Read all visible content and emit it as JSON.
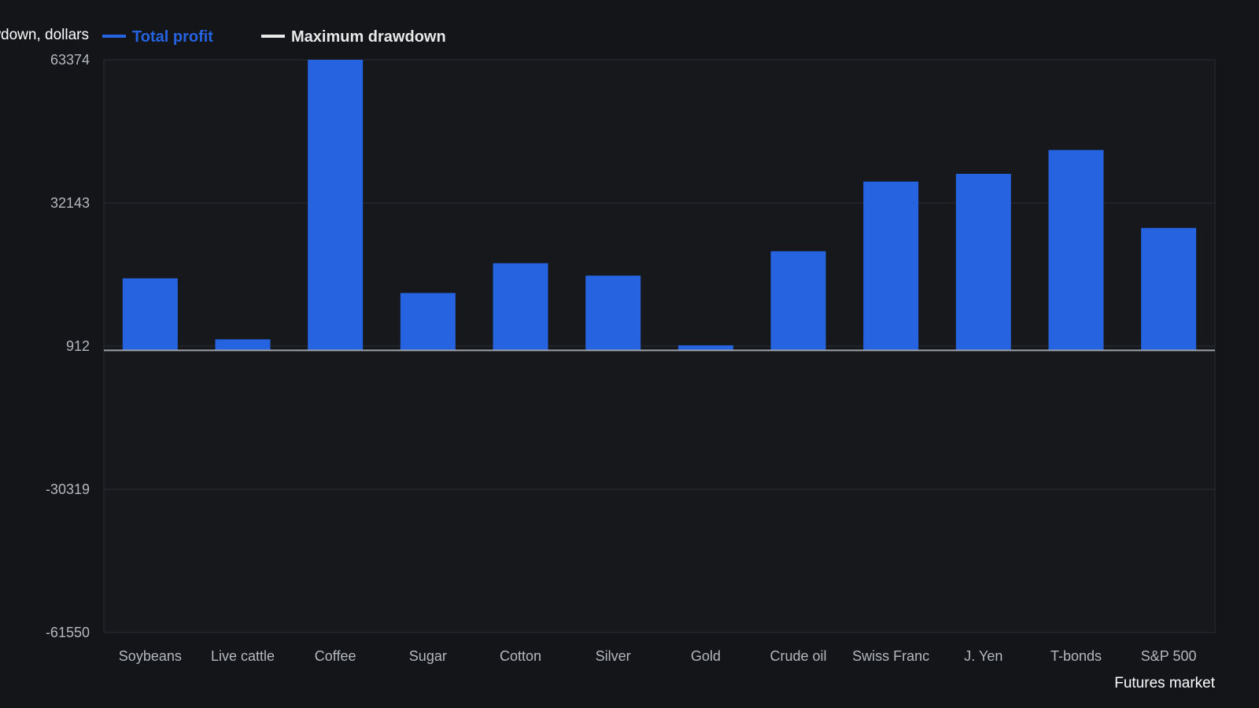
{
  "chart_data": {
    "type": "bar",
    "title": "",
    "ylabel": "Total profit, maximum drawdown, dollars",
    "xlabel": "Futures market",
    "categories": [
      "Soybeans",
      "Live cattle",
      "Coffee",
      "Sugar",
      "Cotton",
      "Silver",
      "Gold",
      "Crude oil",
      "Swiss Franc",
      "J. Yen",
      "T-bonds",
      "S&P 500"
    ],
    "series": [
      {
        "name": "Total profit",
        "color": "#2563e0",
        "values": [
          15700,
          2400,
          63374,
          12500,
          19000,
          16300,
          1100,
          21600,
          36800,
          38500,
          43700,
          26700
        ]
      },
      {
        "name": "Maximum drawdown",
        "color": "#e8e8e8",
        "values": [
          0,
          0,
          0,
          0,
          0,
          0,
          0,
          0,
          0,
          0,
          0,
          0
        ]
      }
    ],
    "yticks": [
      63374,
      32143,
      912,
      -30319,
      -61550
    ],
    "ylim": [
      -61550,
      63374
    ],
    "grid": true,
    "legend_position": "top-left"
  }
}
